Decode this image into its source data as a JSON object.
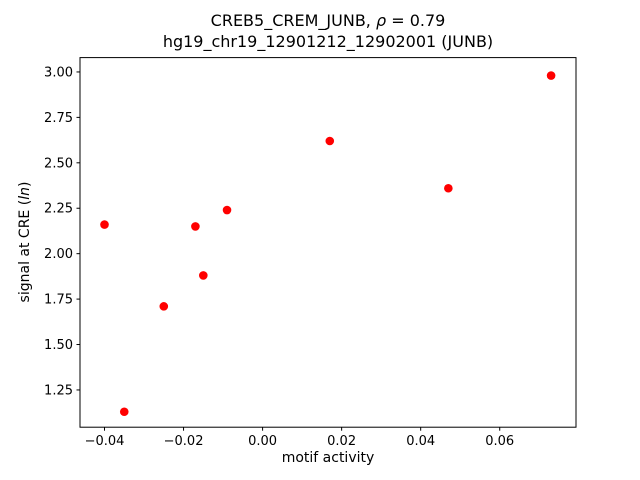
{
  "chart_data": {
    "type": "scatter",
    "title_line1": {
      "prefix": "CREB5_CREM_JUNB, ",
      "rho": "ρ",
      "suffix": " = 0.79"
    },
    "title_line2": "hg19_chr19_12901212_12902001 (JUNB)",
    "xlabel": "motif activity",
    "ylabel": {
      "prefix": "signal at CRE (",
      "italic": "ln",
      "suffix": ")"
    },
    "marker_color": "#ff0000",
    "axis_color": "#000000",
    "grid": false,
    "legend": null,
    "xlim": [
      -0.0462,
      0.0793
    ],
    "ylim": [
      1.045,
      3.079
    ],
    "x_ticks": [
      -0.04,
      -0.02,
      0.0,
      0.02,
      0.04,
      0.06
    ],
    "y_ticks": [
      1.25,
      1.5,
      1.75,
      2.0,
      2.25,
      2.5,
      2.75,
      3.0
    ],
    "points": [
      {
        "x": -0.04,
        "y": 2.16
      },
      {
        "x": -0.035,
        "y": 1.13
      },
      {
        "x": -0.025,
        "y": 1.71
      },
      {
        "x": -0.017,
        "y": 2.15
      },
      {
        "x": -0.015,
        "y": 1.88
      },
      {
        "x": -0.009,
        "y": 2.24
      },
      {
        "x": 0.017,
        "y": 2.62
      },
      {
        "x": 0.047,
        "y": 2.36
      },
      {
        "x": 0.073,
        "y": 2.98
      }
    ]
  }
}
